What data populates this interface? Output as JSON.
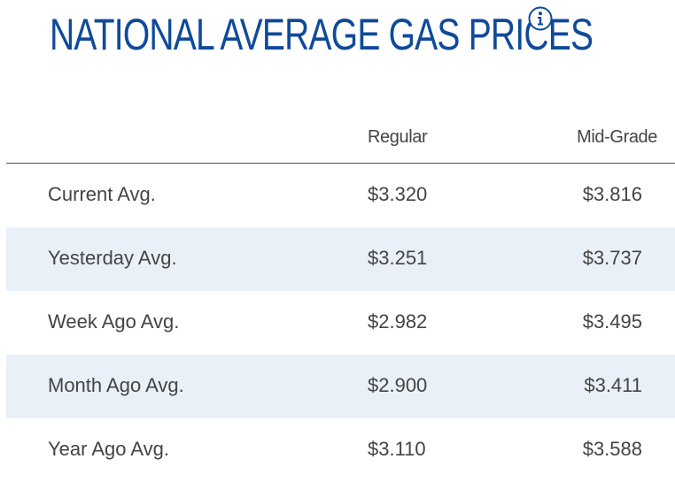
{
  "title": "NATIONAL AVERAGE GAS PRICES",
  "icons": {
    "info": "info-circle-icon"
  },
  "colors": {
    "title": "#0f4a9a",
    "row_alt_bg": "#eaf0f8",
    "text": "#444444"
  },
  "columns": [
    "Regular",
    "Mid-Grade"
  ],
  "rows": [
    {
      "label": "Current Avg.",
      "regular": "$3.320",
      "mid_grade": "$3.816"
    },
    {
      "label": "Yesterday Avg.",
      "regular": "$3.251",
      "mid_grade": "$3.737"
    },
    {
      "label": "Week Ago Avg.",
      "regular": "$2.982",
      "mid_grade": "$3.495"
    },
    {
      "label": "Month Ago Avg.",
      "regular": "$2.900",
      "mid_grade": "$3.411"
    },
    {
      "label": "Year Ago Avg.",
      "regular": "$3.110",
      "mid_grade": "$3.588"
    }
  ]
}
